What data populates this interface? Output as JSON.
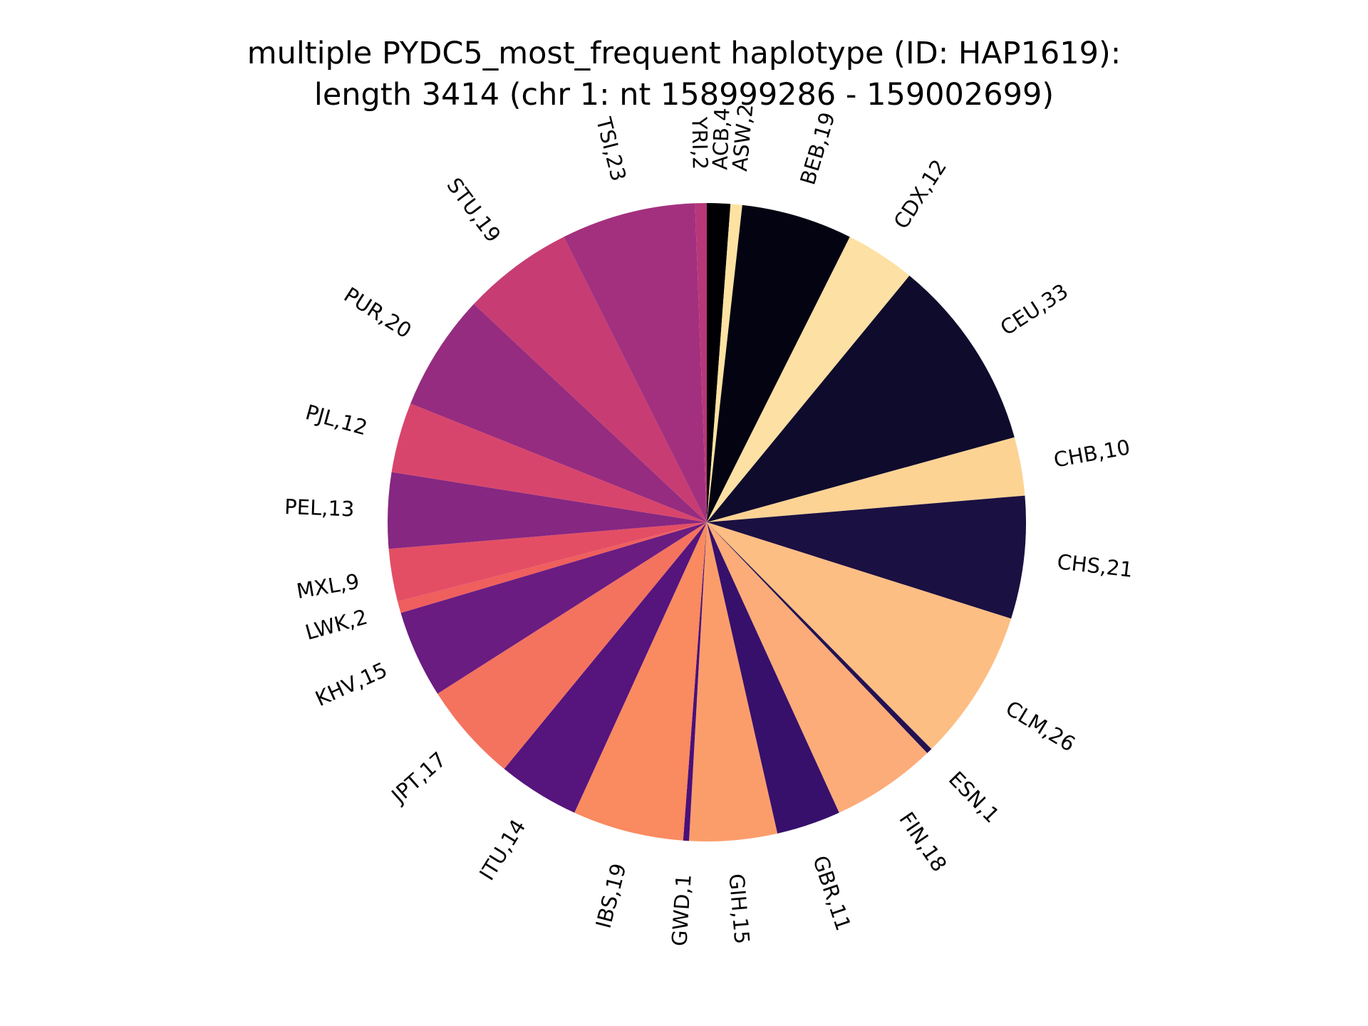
{
  "chart_data": {
    "type": "pie",
    "title": "multiple PYDC5_most_frequent haplotype (ID: HAP1619):",
    "subtitle": "length 3414 (chr 1: nt 158999286 - 159002699)",
    "start_angle_deg": 90,
    "direction": "clockwise",
    "slices": [
      {
        "label": "ACB,4",
        "value": 4,
        "color": "#000004"
      },
      {
        "label": "ASW,2",
        "value": 2,
        "color": "#fde2a2"
      },
      {
        "label": "BEB,19",
        "value": 19,
        "color": "#030312"
      },
      {
        "label": "CDX,12",
        "value": 12,
        "color": "#fde0a3"
      },
      {
        "label": "CEU,33",
        "value": 33,
        "color": "#0f0b2c"
      },
      {
        "label": "CHB,10",
        "value": 10,
        "color": "#fdd394"
      },
      {
        "label": "CHS,21",
        "value": 21,
        "color": "#1b1042"
      },
      {
        "label": "CLM,26",
        "value": 26,
        "color": "#fdbe84"
      },
      {
        "label": "ESN,1",
        "value": 1,
        "color": "#231151"
      },
      {
        "label": "FIN,18",
        "value": 18,
        "color": "#fcac78"
      },
      {
        "label": "GBR,11",
        "value": 11,
        "color": "#37106c"
      },
      {
        "label": "GIH,15",
        "value": 15,
        "color": "#fb9d6b"
      },
      {
        "label": "GWD,1",
        "value": 1,
        "color": "#4a1079"
      },
      {
        "label": "IBS,19",
        "value": 19,
        "color": "#fa8a5f"
      },
      {
        "label": "ITU,14",
        "value": 14,
        "color": "#56147d"
      },
      {
        "label": "JPT,17",
        "value": 17,
        "color": "#f4735f"
      },
      {
        "label": "KHV,15",
        "value": 15,
        "color": "#6a1c81"
      },
      {
        "label": "LWK,2",
        "value": 2,
        "color": "#ef5f5e"
      },
      {
        "label": "MXL,9",
        "value": 9,
        "color": "#e44e65"
      },
      {
        "label": "PEL,13",
        "value": 13,
        "color": "#862781"
      },
      {
        "label": "PJL,12",
        "value": 12,
        "color": "#d8456c"
      },
      {
        "label": "PUR,20",
        "value": 20,
        "color": "#962c7f"
      },
      {
        "label": "STU,19",
        "value": 19,
        "color": "#c73d73"
      },
      {
        "label": "TSI,23",
        "value": 23,
        "color": "#a3307e"
      },
      {
        "label": "YRI,2",
        "value": 2,
        "color": "#b73779"
      }
    ]
  }
}
